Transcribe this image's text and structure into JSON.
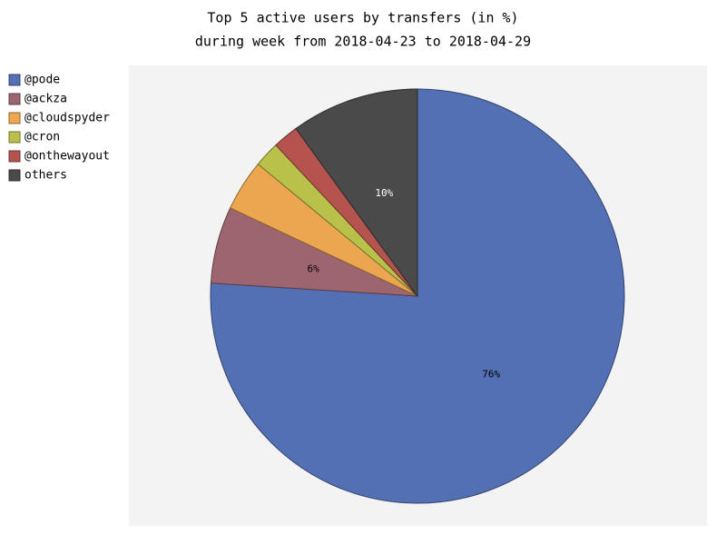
{
  "chart_data": {
    "type": "pie",
    "title": "Top 5 active users by transfers (in %)",
    "subtitle": "during week from 2018-04-23 to 2018-04-29",
    "categories": [
      "@pode",
      "@ackza",
      "@cloudspyder",
      "@cron",
      "@onthewayout",
      "others"
    ],
    "values": [
      76,
      6,
      4,
      2,
      2,
      10
    ],
    "value_labels": [
      "76%",
      "6%",
      null,
      null,
      null,
      "10%"
    ],
    "colors": [
      "#5470b4",
      "#9c6570",
      "#eba64f",
      "#b9c14a",
      "#b5534f",
      "#4a4a4a"
    ],
    "legend": "left"
  }
}
